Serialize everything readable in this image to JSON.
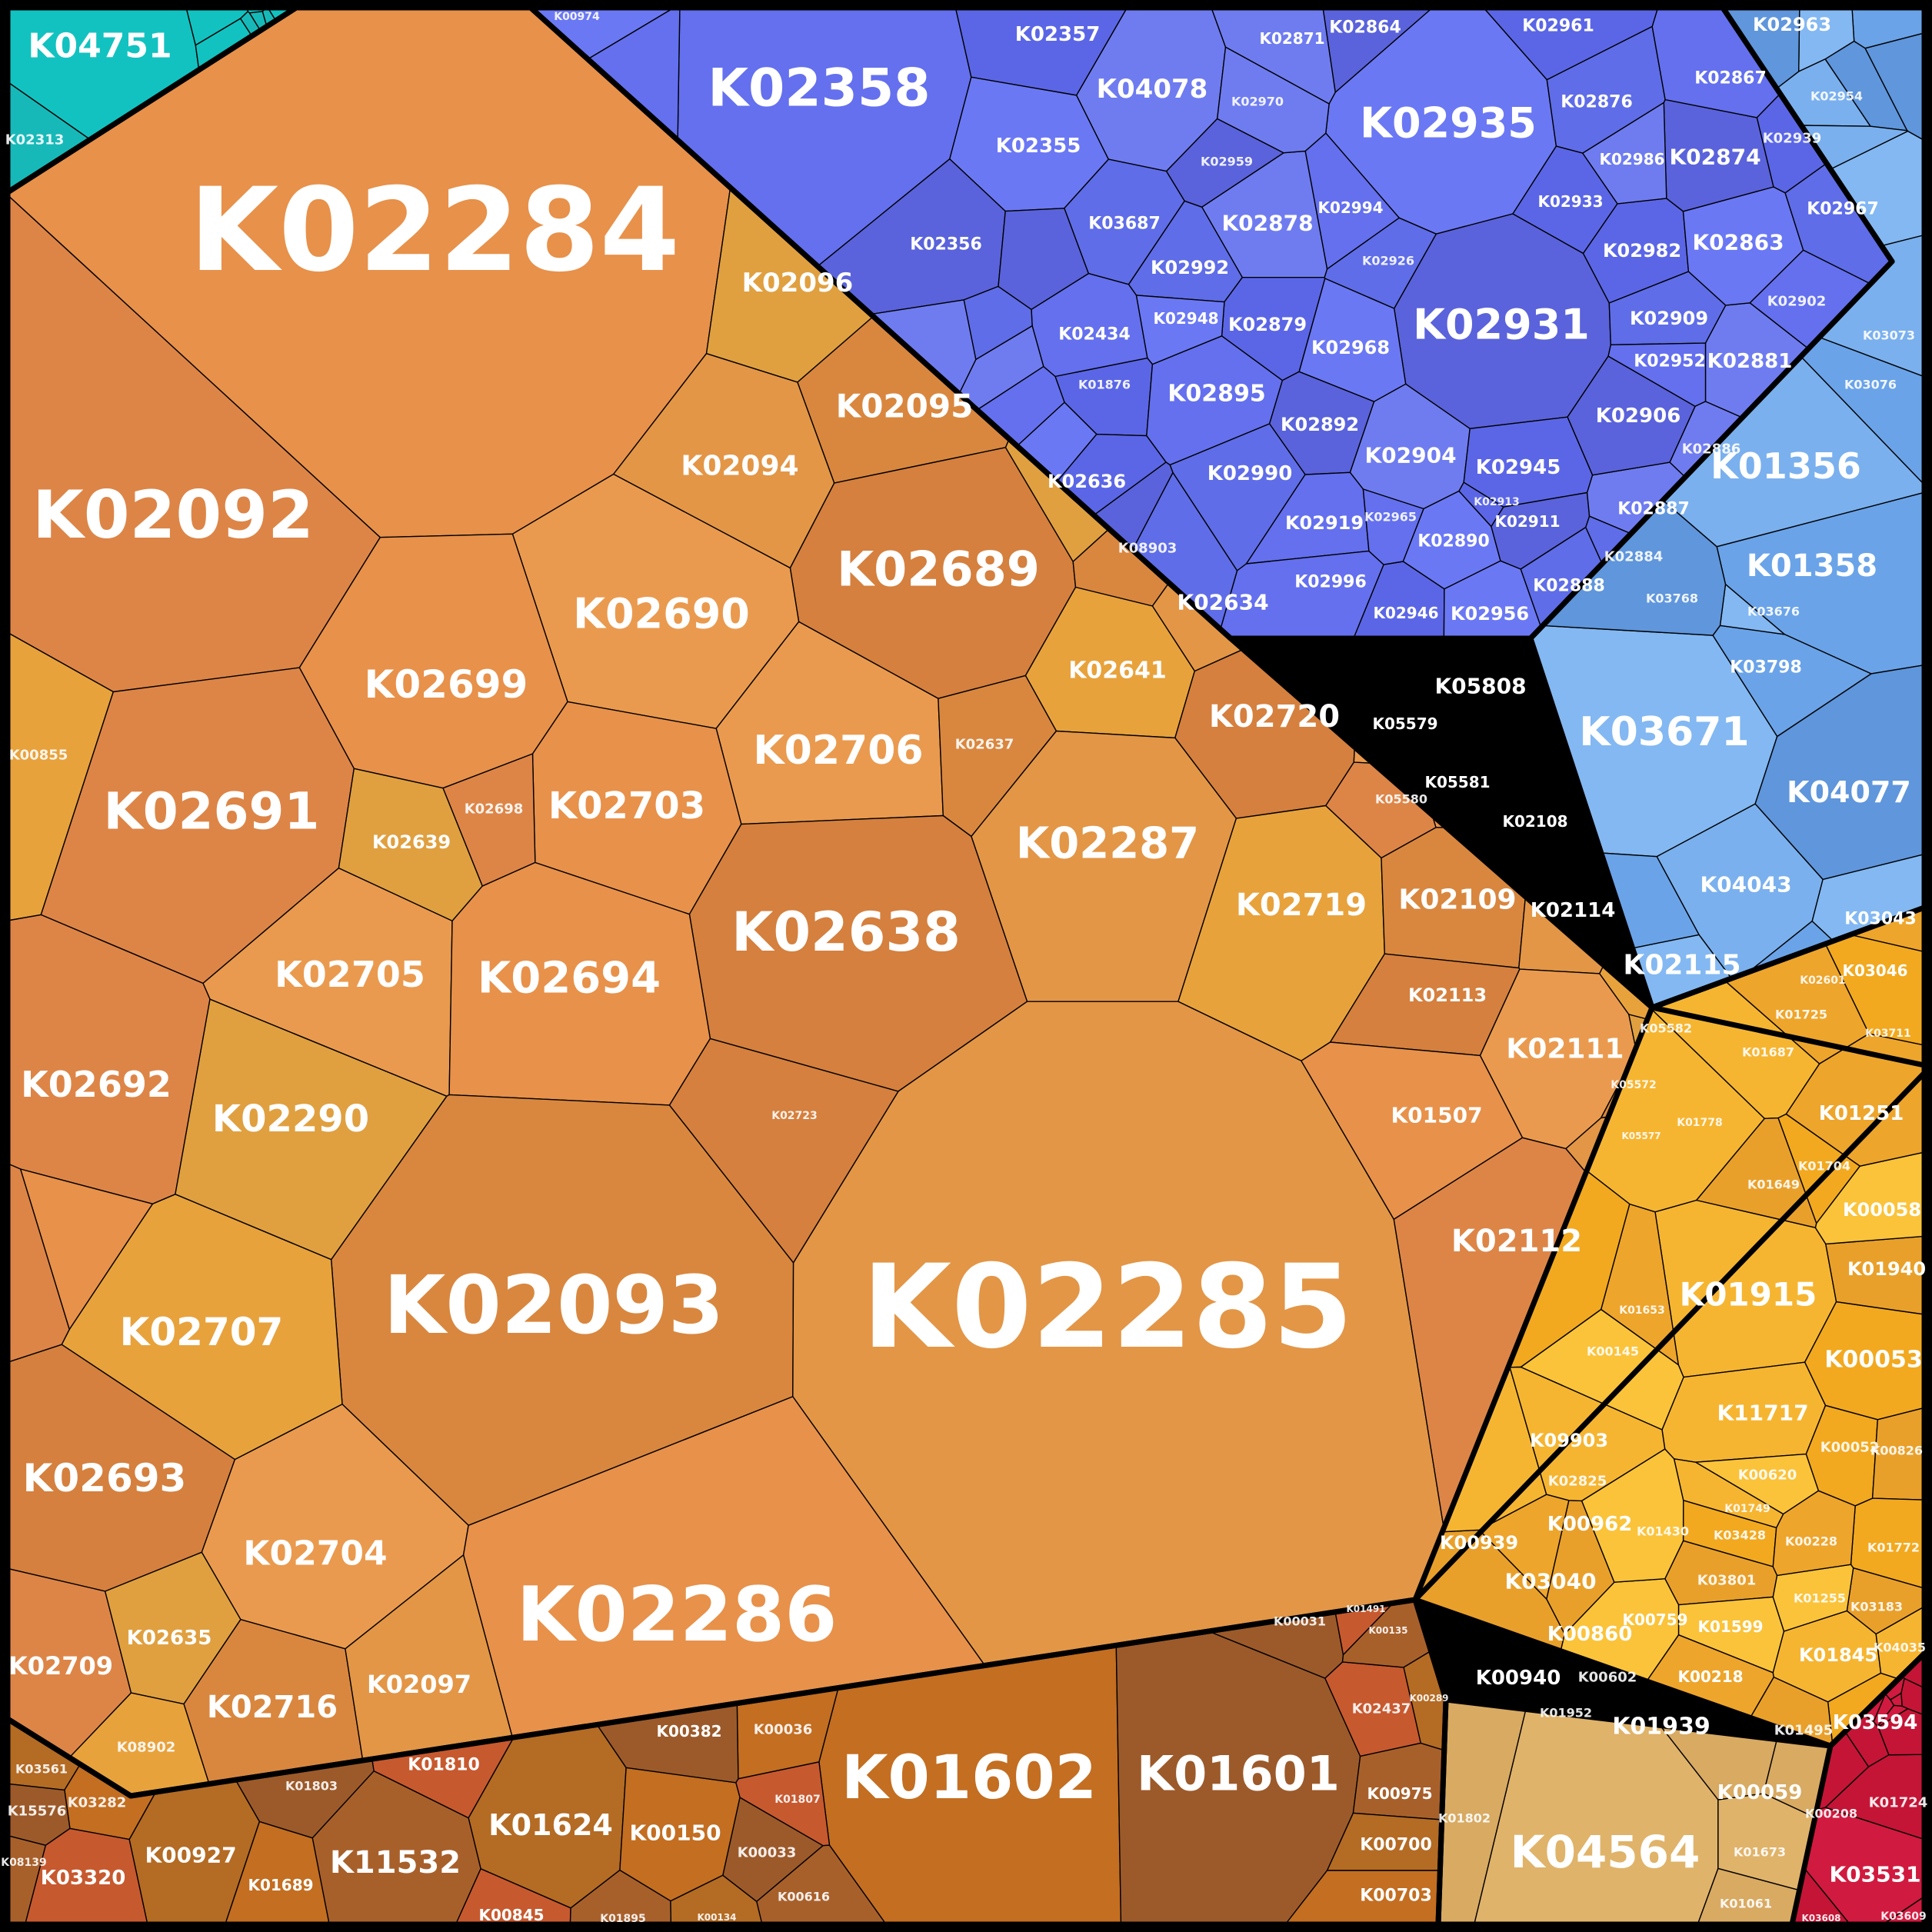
{
  "chart_data": {
    "type": "voronoi-treemap",
    "groups": [
      {
        "name": "teal",
        "color": "#12c2c0"
      },
      {
        "name": "orange",
        "color": "#e8914a"
      },
      {
        "name": "blue",
        "color": "#6470ee"
      },
      {
        "name": "skyblue",
        "color": "#7ab0ee"
      },
      {
        "name": "yellow",
        "color": "#f6b531"
      },
      {
        "name": "brown",
        "color": "#a8602b"
      },
      {
        "name": "tan",
        "color": "#e0b36a"
      },
      {
        "name": "crimson",
        "color": "#d11a3f"
      }
    ],
    "labels": {
      "K04751": "K04751",
      "K02313": "K02313",
      "K02284": "K02284",
      "K02092": "K02092",
      "K02096": "K02096",
      "K02095": "K02095",
      "K02094": "K02094",
      "K00855": "K00855",
      "K02358": "K02358",
      "K02357": "K02357",
      "K02355": "K02355",
      "K02356": "K02356",
      "K04078": "K04078",
      "K03687": "K03687",
      "K02434": "K02434",
      "K01876": "K01876",
      "K02935": "K02935",
      "K02931": "K02931",
      "K02878": "K02878",
      "K02992": "K02992",
      "K02895": "K02895",
      "K02879": "K02879",
      "K02968": "K02968",
      "K02892": "K02892",
      "K02904": "K02904",
      "K02990": "K02990",
      "K02919": "K02919",
      "K02945": "K02945",
      "K02890": "K02890",
      "K02911": "K02911",
      "K02887": "K02887",
      "K02888": "K02888",
      "K02996": "K02996",
      "K02946": "K02946",
      "K02956": "K02956",
      "K02906": "K02906",
      "K02881": "K02881",
      "K02909": "K02909",
      "K02952": "K02952",
      "K02982": "K02982",
      "K02863": "K02863",
      "K02874": "K02874",
      "K02986": "K02986",
      "K02876": "K02876",
      "K02867": "K02867",
      "K02961": "K02961",
      "K02963": "K02963",
      "K02864": "K02864",
      "K02871": "K02871",
      "K02967": "K02967",
      "K02994": "K02994",
      "K02933": "K02933",
      "K02948": "K02948",
      "K05808": "K05808",
      "K02886": "K02886",
      "K02884": "K02884",
      "K02902": "K02902",
      "K02939": "K02939",
      "K02954": "K02954",
      "K02959": "K02959",
      "K02970": "K02970",
      "K02926": "K02926",
      "K02965": "K02965",
      "K02913": "K02913",
      "K01356": "K01356",
      "K01358": "K01358",
      "K03671": "K03671",
      "K04077": "K04077",
      "K04043": "K04043",
      "K03798": "K03798",
      "K03676": "K03676",
      "K03768": "K03768",
      "K03073": "K03073",
      "K03076": "K03076",
      "K03043": "K03043",
      "K03046": "K03046",
      "K03711": "K03711",
      "K02601": "K02601",
      "K02689": "K02689",
      "K02690": "K02690",
      "K02699": "K02699",
      "K02691": "K02691",
      "K02636": "K02636",
      "K08903": "K08903",
      "K02634": "K02634",
      "K02641": "K02641",
      "K02720": "K02720",
      "K02706": "K02706",
      "K02703": "K02703",
      "K02698": "K02698",
      "K02639": "K02639",
      "K02637": "K02637",
      "K02287": "K02287",
      "K02719": "K02719",
      "K02638": "K02638",
      "K02705": "K02705",
      "K02694": "K02694",
      "K02692": "K02692",
      "K02290": "K02290",
      "K02093": "K02093",
      "K02285": "K02285",
      "K02707": "K02707",
      "K02693": "K02693",
      "K02704": "K02704",
      "K02286": "K02286",
      "K02709": "K02709",
      "K02635": "K02635",
      "K02716": "K02716",
      "K02097": "K02097",
      "K08902": "K08902",
      "K02723": "K02723",
      "K05579": "K05579",
      "K05581": "K05581",
      "K05580": "K05580",
      "K02108": "K02108",
      "K02109": "K02109",
      "K02114": "K02114",
      "K02115": "K02115",
      "K02113": "K02113",
      "K02111": "K02111",
      "K01507": "K01507",
      "K02112": "K02112",
      "K05582": "K05582",
      "K05572": "K05572",
      "K05577": "K05577",
      "K01915": "K01915",
      "K00053": "K00053",
      "K01940": "K01940",
      "K00058": "K00058",
      "K01251": "K01251",
      "K11717": "K11717",
      "K00052": "K00052",
      "K00826": "K00826",
      "K00620": "K00620",
      "K01725": "K01725",
      "K01687": "K01687",
      "K01704": "K01704",
      "K01649": "K01649",
      "K00145": "K00145",
      "K01653": "K01653",
      "K01778": "K01778",
      "K09903": "K09903",
      "K02825": "K02825",
      "K00962": "K00962",
      "K00939": "K00939",
      "K03040": "K03040",
      "K00860": "K00860",
      "K00759": "K00759",
      "K00940": "K00940",
      "K00602": "K00602",
      "K01939": "K01939",
      "K01952": "K01952",
      "K01430": "K01430",
      "K03428": "K03428",
      "K03801": "K03801",
      "K01599": "K01599",
      "K00218": "K00218",
      "K01845": "K01845",
      "K03594": "K03594",
      "K01495": "K01495",
      "K00059": "K00059",
      "K00208": "K00208",
      "K04035": "K04035",
      "K01772": "K01772",
      "K03183": "K03183",
      "K01255": "K01255",
      "K00228": "K00228",
      "K01749": "K01749",
      "K04564": "K04564",
      "K03531": "K03531",
      "K01724": "K01724",
      "K03609": "K03609",
      "K03608": "K03608",
      "K01802": "K01802",
      "K01673": "K01673",
      "K01061": "K01061",
      "K01602": "K01602",
      "K01601": "K01601",
      "K02437": "K02437",
      "K00975": "K00975",
      "K00700": "K00700",
      "K00703": "K00703",
      "K00031": "K00031",
      "K01491": "K01491",
      "K00135": "K00135",
      "K00289": "K00289",
      "K00036": "K00036",
      "K00033": "K00033",
      "K01807": "K01807",
      "K00616": "K00616",
      "K01624": "K01624",
      "K00150": "K00150",
      "K00382": "K00382",
      "K01810": "K01810",
      "K11532": "K11532",
      "K00927": "K00927",
      "K01689": "K01689",
      "K01803": "K01803",
      "K00845": "K00845",
      "K01895": "K01895",
      "K03561": "K03561",
      "K03282": "K03282",
      "K15576": "K15576",
      "K03320": "K03320",
      "K08139": "K08139",
      "K00134": "K00134",
      "K00974": "K00974"
    }
  }
}
